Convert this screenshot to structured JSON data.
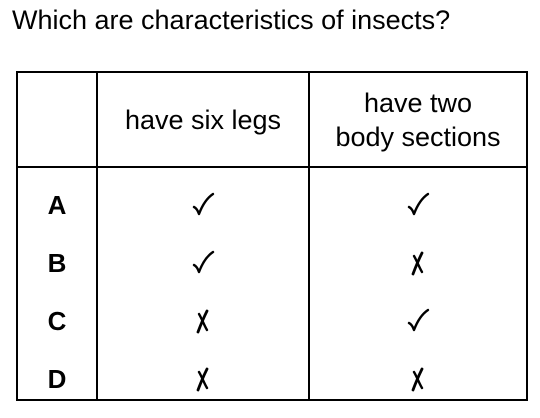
{
  "question": "Which are characteristics of insects?",
  "columns": [
    {
      "label": "have six legs"
    },
    {
      "label": "have two body sections",
      "line1": "have two",
      "line2": "body sections"
    }
  ],
  "rows": [
    {
      "letter": "A",
      "marks": [
        "tick",
        "tick"
      ]
    },
    {
      "letter": "B",
      "marks": [
        "tick",
        "cross"
      ]
    },
    {
      "letter": "C",
      "marks": [
        "cross",
        "tick"
      ]
    },
    {
      "letter": "D",
      "marks": [
        "cross",
        "cross"
      ]
    }
  ]
}
